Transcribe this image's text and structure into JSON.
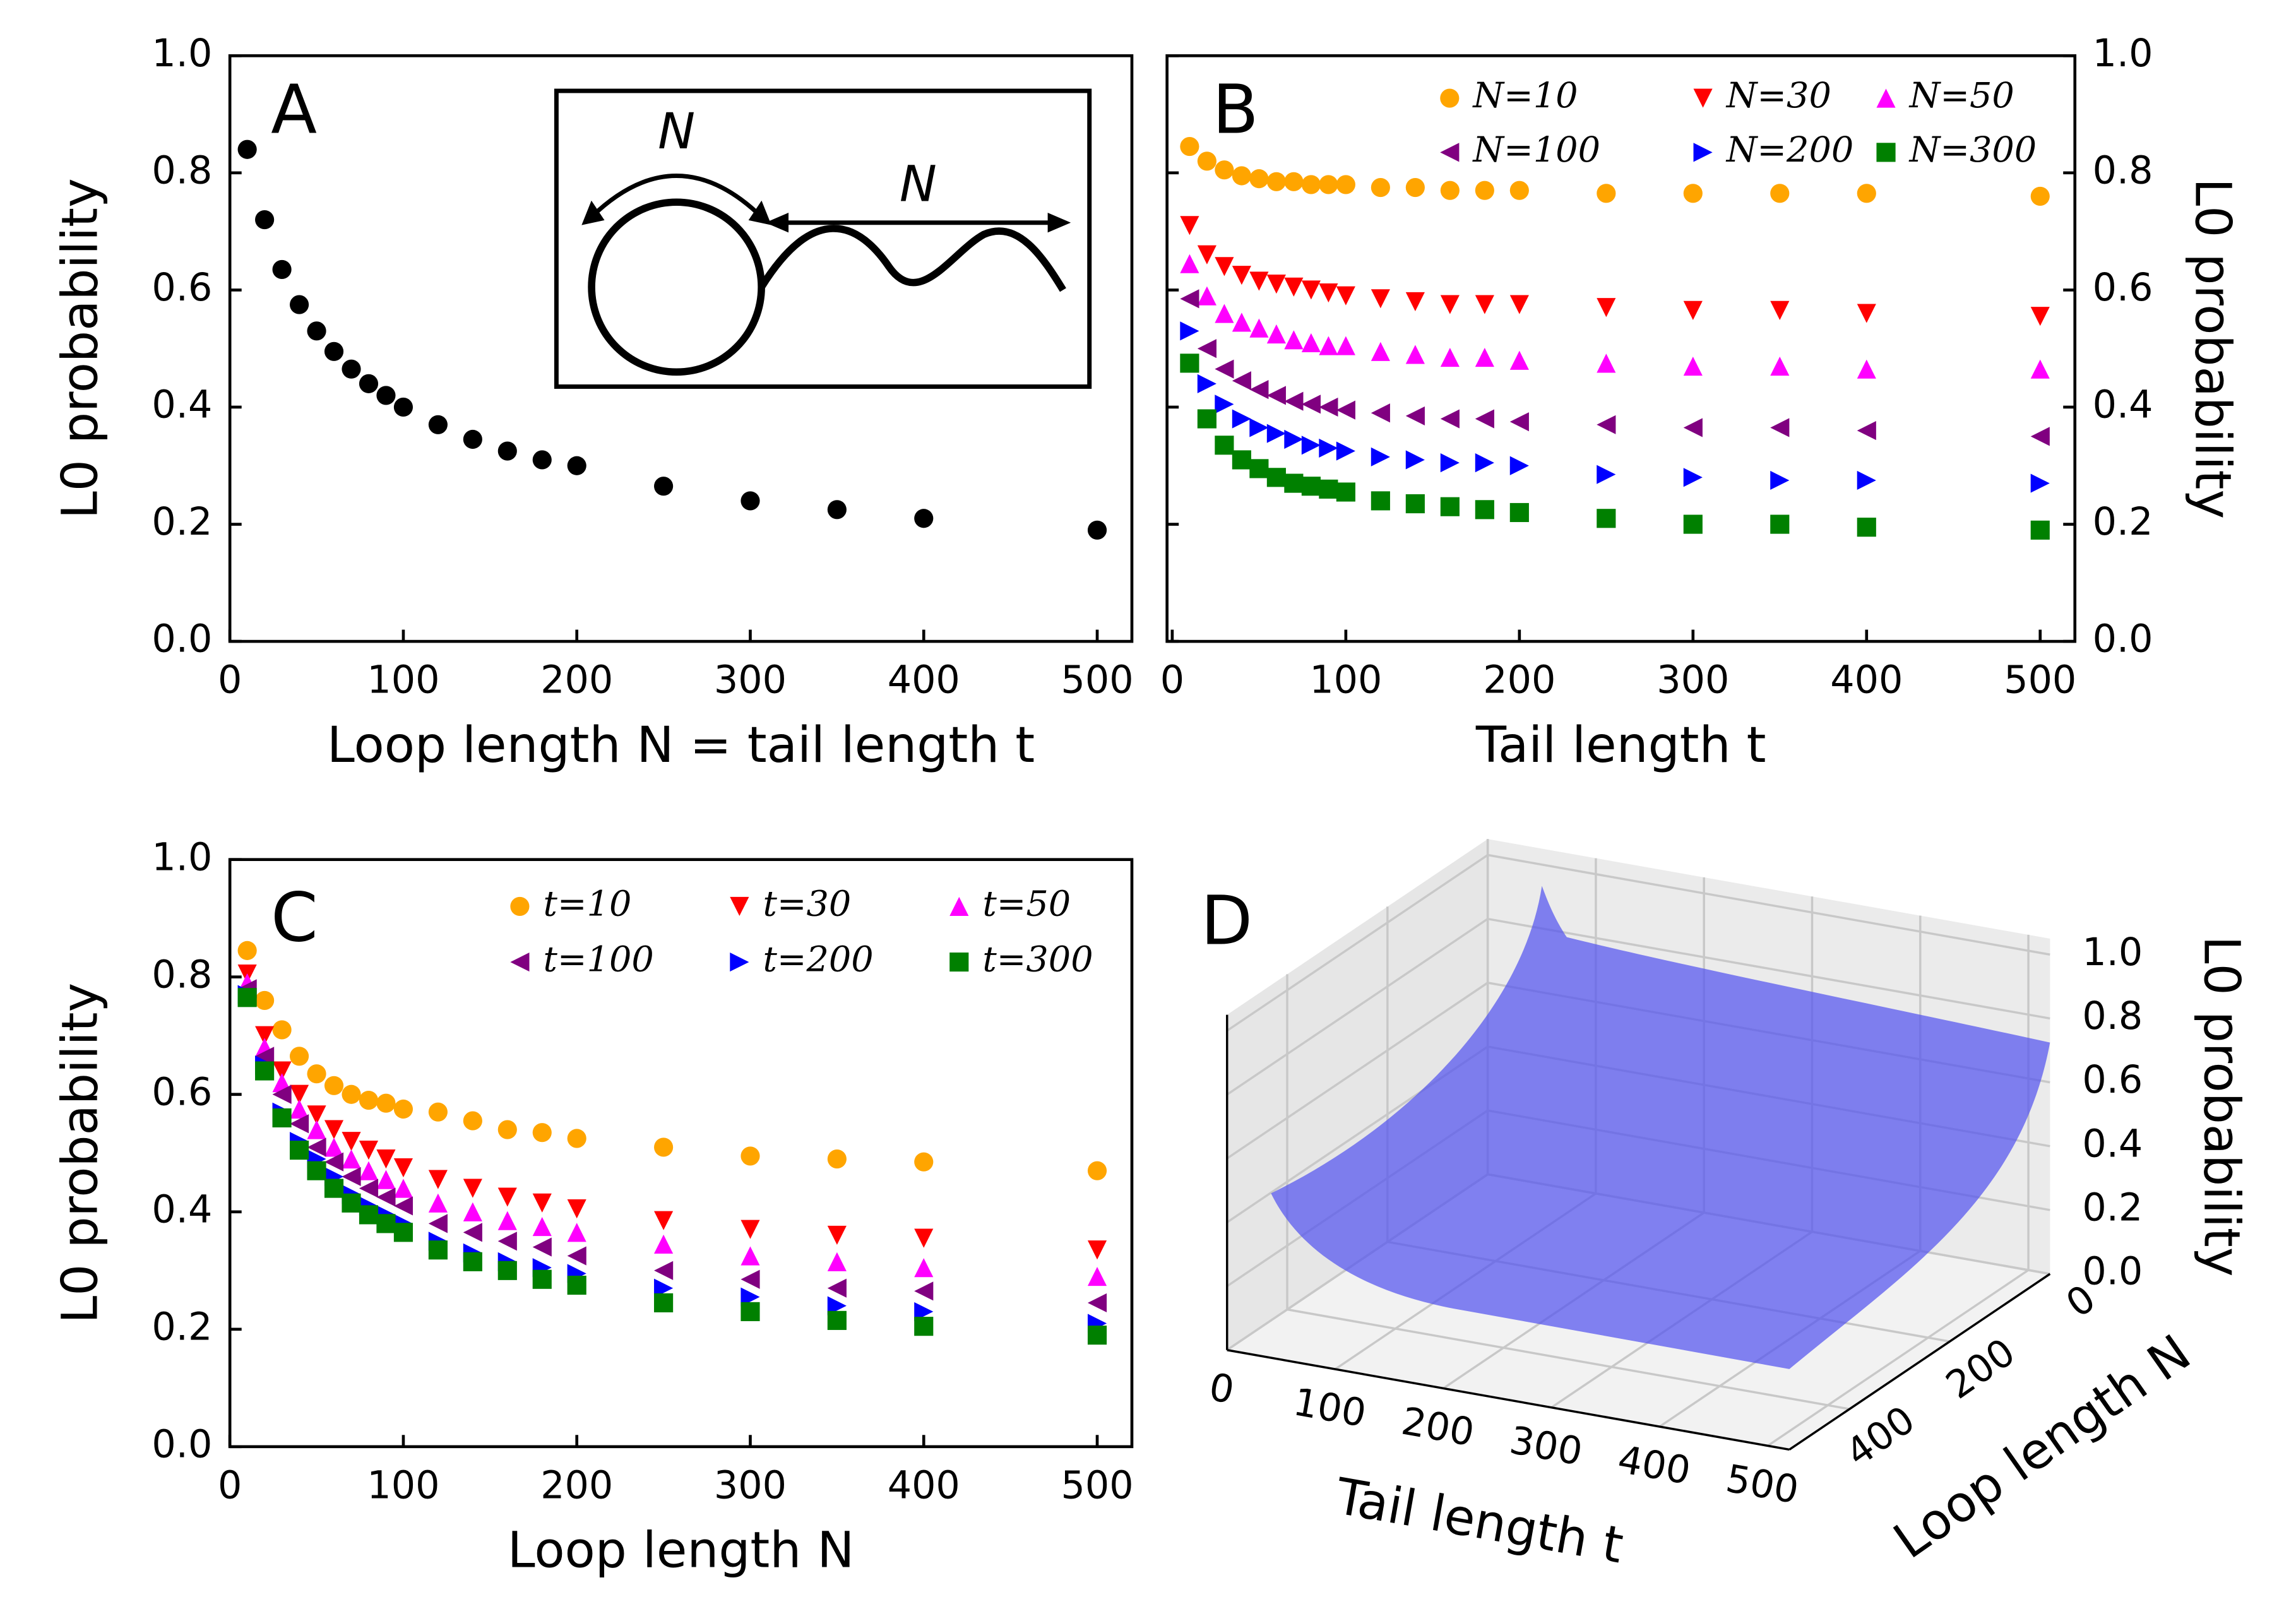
{
  "chart_data": [
    {
      "type": "scatter",
      "panel_label": "A",
      "x_label": "Loop length N = tail length t",
      "y_label": "L0 probability",
      "x": [
        10,
        20,
        30,
        40,
        50,
        60,
        70,
        80,
        90,
        100,
        120,
        140,
        160,
        180,
        200,
        250,
        300,
        350,
        400,
        500
      ],
      "values": [
        0.84,
        0.72,
        0.635,
        0.575,
        0.53,
        0.495,
        0.465,
        0.44,
        0.42,
        0.4,
        0.37,
        0.345,
        0.325,
        0.31,
        0.3,
        0.265,
        0.24,
        0.225,
        0.21,
        0.19
      ],
      "color": "#000000",
      "xlim": [
        0,
        520
      ],
      "ylim": [
        0,
        1
      ],
      "xticks": [
        0,
        100,
        200,
        300,
        400,
        500
      ],
      "yticks": [
        {
          "value": 0,
          "label": "0.0"
        },
        0.2,
        0.4,
        0.6,
        0.8,
        {
          "value": 1,
          "label": "1.0"
        }
      ],
      "annotations": [
        "N",
        "N"
      ],
      "y_axis_position": "left"
    },
    {
      "type": "scatter",
      "panel_label": "B",
      "x_label": "Tail length t",
      "y_label": "L0 probability",
      "x": [
        10,
        20,
        30,
        40,
        50,
        60,
        70,
        80,
        90,
        100,
        120,
        140,
        160,
        180,
        200,
        250,
        300,
        350,
        400,
        500
      ],
      "series": [
        {
          "name": "N=10",
          "color": "#ffa500",
          "marker": "circle",
          "values": [
            0.845,
            0.82,
            0.805,
            0.795,
            0.79,
            0.785,
            0.785,
            0.78,
            0.78,
            0.78,
            0.775,
            0.775,
            0.77,
            0.77,
            0.77,
            0.765,
            0.765,
            0.765,
            0.765,
            0.76
          ]
        },
        {
          "name": "N=30",
          "color": "#ff0000",
          "marker": "triangle-down",
          "values": [
            0.71,
            0.66,
            0.64,
            0.625,
            0.615,
            0.61,
            0.605,
            0.6,
            0.595,
            0.59,
            0.585,
            0.58,
            0.575,
            0.575,
            0.575,
            0.57,
            0.565,
            0.565,
            0.56,
            0.555
          ]
        },
        {
          "name": "N=50",
          "color": "#ff00ff",
          "marker": "triangle-up",
          "values": [
            0.645,
            0.59,
            0.56,
            0.545,
            0.535,
            0.525,
            0.515,
            0.51,
            0.505,
            0.505,
            0.495,
            0.49,
            0.485,
            0.485,
            0.48,
            0.475,
            0.47,
            0.47,
            0.465,
            0.465
          ]
        },
        {
          "name": "N=100",
          "color": "#800080",
          "marker": "triangle-left",
          "values": [
            0.585,
            0.5,
            0.465,
            0.445,
            0.43,
            0.42,
            0.41,
            0.405,
            0.4,
            0.395,
            0.39,
            0.385,
            0.38,
            0.38,
            0.375,
            0.37,
            0.365,
            0.365,
            0.36,
            0.35
          ]
        },
        {
          "name": "N=200",
          "color": "#0000ff",
          "marker": "triangle-right",
          "values": [
            0.53,
            0.44,
            0.405,
            0.38,
            0.365,
            0.355,
            0.345,
            0.335,
            0.33,
            0.325,
            0.315,
            0.31,
            0.305,
            0.305,
            0.3,
            0.285,
            0.28,
            0.275,
            0.275,
            0.27
          ]
        },
        {
          "name": "N=300",
          "color": "#008000",
          "marker": "square",
          "values": [
            0.475,
            0.38,
            0.335,
            0.31,
            0.295,
            0.28,
            0.27,
            0.265,
            0.26,
            0.255,
            0.24,
            0.235,
            0.23,
            0.225,
            0.22,
            0.21,
            0.2,
            0.2,
            0.195,
            0.19
          ]
        }
      ],
      "xlim": [
        -3,
        520
      ],
      "ylim": [
        0,
        1
      ],
      "xticks": [
        0,
        100,
        200,
        300,
        400,
        500
      ],
      "yticks": [
        {
          "value": 0,
          "label": "0.0"
        },
        0.2,
        0.4,
        0.6,
        0.8,
        {
          "value": 1,
          "label": "1.0"
        }
      ],
      "y_axis_position": "right"
    },
    {
      "type": "scatter",
      "panel_label": "C",
      "x_label": "Loop length N",
      "y_label": "L0 probability",
      "x": [
        10,
        20,
        30,
        40,
        50,
        60,
        70,
        80,
        90,
        100,
        120,
        140,
        160,
        180,
        200,
        250,
        300,
        350,
        400,
        500
      ],
      "series": [
        {
          "name": "t=10",
          "color": "#ffa500",
          "marker": "circle",
          "values": [
            0.845,
            0.76,
            0.71,
            0.665,
            0.635,
            0.615,
            0.6,
            0.59,
            0.585,
            0.575,
            0.57,
            0.555,
            0.54,
            0.535,
            0.525,
            0.51,
            0.495,
            0.49,
            0.485,
            0.47
          ]
        },
        {
          "name": "t=30",
          "color": "#ff0000",
          "marker": "triangle-down",
          "values": [
            0.805,
            0.7,
            0.64,
            0.6,
            0.565,
            0.54,
            0.52,
            0.505,
            0.49,
            0.475,
            0.455,
            0.44,
            0.425,
            0.415,
            0.405,
            0.385,
            0.37,
            0.36,
            0.355,
            0.335
          ]
        },
        {
          "name": "t=50",
          "color": "#ff00ff",
          "marker": "triangle-up",
          "values": [
            0.79,
            0.68,
            0.62,
            0.575,
            0.54,
            0.51,
            0.49,
            0.47,
            0.455,
            0.44,
            0.415,
            0.4,
            0.385,
            0.375,
            0.365,
            0.345,
            0.325,
            0.315,
            0.305,
            0.29
          ]
        },
        {
          "name": "t=100",
          "color": "#800080",
          "marker": "triangle-left",
          "values": [
            0.78,
            0.665,
            0.6,
            0.55,
            0.51,
            0.485,
            0.46,
            0.44,
            0.425,
            0.41,
            0.38,
            0.365,
            0.35,
            0.34,
            0.325,
            0.3,
            0.285,
            0.27,
            0.265,
            0.245
          ]
        },
        {
          "name": "t=200",
          "color": "#0000ff",
          "marker": "triangle-right",
          "values": [
            0.77,
            0.65,
            0.57,
            0.52,
            0.49,
            0.46,
            0.43,
            0.41,
            0.395,
            0.38,
            0.35,
            0.33,
            0.315,
            0.305,
            0.295,
            0.27,
            0.255,
            0.24,
            0.23,
            0.21
          ]
        },
        {
          "name": "t=300",
          "color": "#008000",
          "marker": "square",
          "values": [
            0.765,
            0.64,
            0.56,
            0.505,
            0.47,
            0.44,
            0.415,
            0.395,
            0.38,
            0.365,
            0.335,
            0.315,
            0.3,
            0.285,
            0.275,
            0.245,
            0.23,
            0.215,
            0.205,
            0.19
          ]
        }
      ],
      "xlim": [
        0,
        520
      ],
      "ylim": [
        0,
        1
      ],
      "xticks": [
        0,
        100,
        200,
        300,
        400,
        500
      ],
      "yticks": [
        {
          "value": 0,
          "label": "0.0"
        },
        0.2,
        0.4,
        0.6,
        0.8,
        {
          "value": 1,
          "label": "1.0"
        }
      ],
      "y_axis_position": "left"
    },
    {
      "type": "surface3d",
      "panel_label": "D",
      "x_label": "Tail length t",
      "y_label": "Loop length N",
      "z_label": "L0 probability",
      "xlim": [
        0,
        520
      ],
      "ylim": [
        0,
        520
      ],
      "zlim": [
        0,
        1.05
      ],
      "xticks": [
        0,
        100,
        200,
        300,
        400,
        500
      ],
      "yticks": [
        0,
        200,
        400
      ],
      "zticks": [
        {
          "value": 0,
          "label": "0.0"
        },
        0.2,
        0.4,
        0.6,
        0.8,
        {
          "value": 1,
          "label": "1.0"
        }
      ],
      "surface_color": "#5050f0"
    }
  ]
}
